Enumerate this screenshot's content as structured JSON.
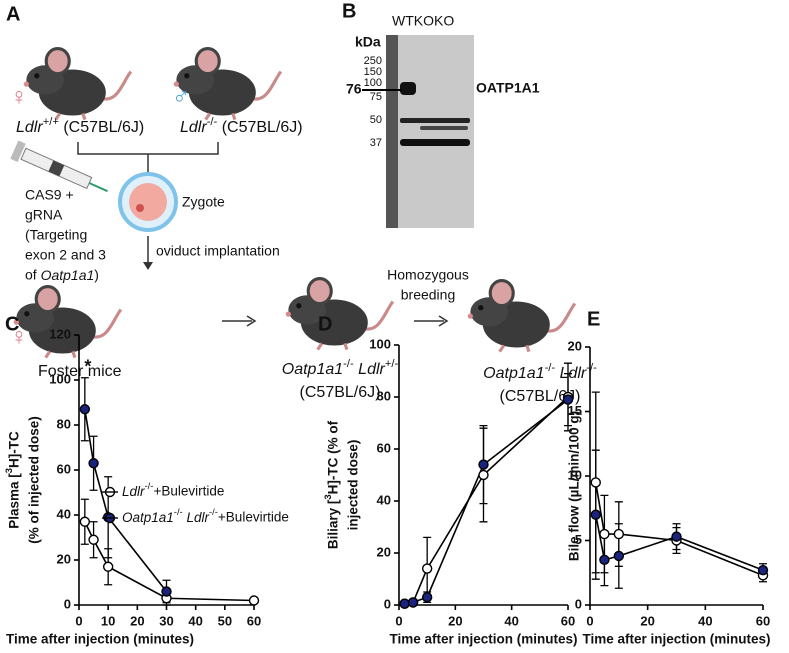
{
  "diagram": {
    "label": "A",
    "parents": [
      {
        "sex": "♀",
        "genotype": "Ldlr+/+ (C57BL/6J)"
      },
      {
        "sex": "♂",
        "genotype": "Ldlr-/- (C57BL/6J)"
      }
    ],
    "injection": [
      "CAS9 +",
      "gRNA",
      "(Targeting",
      "exon 2 and 3",
      "of Oatp1a1)"
    ],
    "zygote": "Zygote",
    "step": "oviduct implantation",
    "foster": {
      "sex": "♀",
      "label": "Foster mice"
    },
    "breeding": [
      "Homozygous",
      "breeding"
    ],
    "offspring": [
      {
        "genotype": "Oatp1a1-/- Ldlr+/-",
        "strain": "(C57BL/6J)"
      },
      {
        "genotype": "Oatp1a1-/- Ldlr-/-",
        "strain": "(C57BL/6J)"
      }
    ]
  },
  "blot": {
    "label": "B",
    "lanes": "WTKOKO",
    "unit": "kDa",
    "ladder": [
      250,
      150,
      100,
      75,
      50,
      37
    ],
    "band_size": 76,
    "protein": "OATP1A1"
  },
  "chart_data": [
    {
      "type": "line",
      "label": "C",
      "ylabel": [
        "Plasma [3H]-TC",
        "(% of injected dose)"
      ],
      "xlabel": "Time after injection (minutes)",
      "x": [
        2,
        5,
        10,
        30,
        60
      ],
      "xlim": [
        0,
        60
      ],
      "xticks": [
        0,
        10,
        20,
        30,
        40,
        50,
        60
      ],
      "ylim": [
        0,
        120
      ],
      "yticks": [
        0,
        20,
        40,
        60,
        80,
        100,
        120
      ],
      "annotation": "*",
      "legend": "upper right",
      "series": [
        {
          "name": "Ldlr-/-+Bulevirtide",
          "color": "#ffffff",
          "values": [
            37,
            29,
            17,
            3,
            2
          ],
          "errors": [
            10,
            8,
            8,
            3,
            1
          ]
        },
        {
          "name": "Oatp1a1-/- Ldlr-/-+Bulevirtide",
          "color": "#1a237e",
          "values": [
            87,
            63,
            39,
            6,
            null
          ],
          "errors": [
            14,
            12,
            18,
            5,
            null
          ]
        }
      ]
    },
    {
      "type": "line",
      "label": "D",
      "ylabel": [
        "Biliary [3H]-TC (% of",
        "injected dose)"
      ],
      "xlabel": "Time after injection (minutes)",
      "x": [
        2,
        5,
        10,
        30,
        60
      ],
      "xlim": [
        0,
        60
      ],
      "xticks": [
        0,
        20,
        40,
        60
      ],
      "ylim": [
        0,
        100
      ],
      "yticks": [
        0,
        20,
        40,
        60,
        80,
        100
      ],
      "series": [
        {
          "color": "#ffffff",
          "values": [
            0.5,
            1,
            14,
            50,
            80
          ],
          "errors": [
            0.5,
            1,
            12,
            18,
            13
          ]
        },
        {
          "color": "#1a237e",
          "values": [
            0.5,
            1,
            3,
            54,
            79
          ],
          "errors": [
            0.5,
            1,
            2,
            15,
            10
          ]
        }
      ]
    },
    {
      "type": "line",
      "label": "E",
      "ylabel": [
        "Bile flow (µL/min/100 g)"
      ],
      "xlabel": "Time after injection (minutes)",
      "x": [
        2,
        5,
        10,
        30,
        60
      ],
      "xlim": [
        0,
        60
      ],
      "xticks": [
        0,
        20,
        40,
        60
      ],
      "ylim": [
        0,
        20
      ],
      "yticks": [
        0,
        5,
        10,
        15,
        20
      ],
      "series": [
        {
          "color": "#ffffff",
          "values": [
            9.5,
            5.5,
            5.5,
            5,
            2.3
          ],
          "errors": [
            7,
            3,
            2.5,
            1,
            0.5
          ]
        },
        {
          "color": "#1a237e",
          "values": [
            7,
            3.5,
            3.8,
            5.3,
            2.7
          ],
          "errors": [
            5,
            2,
            2.5,
            1,
            0.5
          ]
        }
      ]
    }
  ]
}
